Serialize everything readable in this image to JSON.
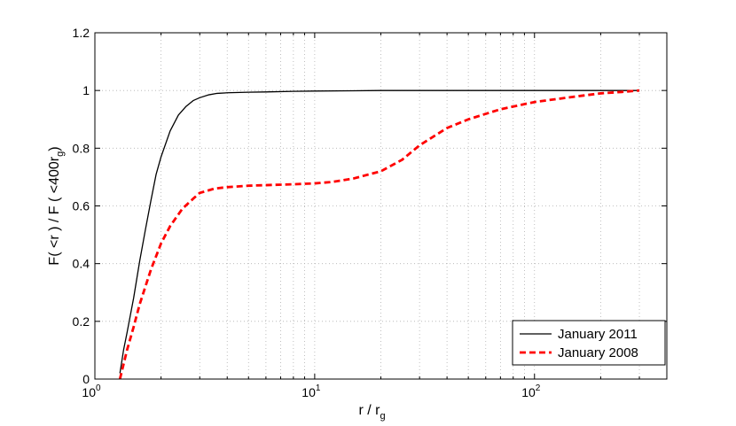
{
  "chart_data": {
    "type": "line",
    "title": "",
    "xlabel": {
      "main": "r / r",
      "sub": "g"
    },
    "ylabel": {
      "main": "F( <r ) / F ( <400r",
      "sub": "g",
      "tail": ")"
    },
    "xscale": "log",
    "xlim": [
      1,
      400
    ],
    "ylim": [
      0,
      1.2
    ],
    "grid": true,
    "legend_position": "bottom-right",
    "xticks": [
      {
        "base": "10",
        "exp": "0",
        "value": 1
      },
      {
        "base": "10",
        "exp": "1",
        "value": 10
      },
      {
        "base": "10",
        "exp": "2",
        "value": 100
      }
    ],
    "yticks": [
      {
        "label": "0",
        "value": 0
      },
      {
        "label": "0.2",
        "value": 0.2
      },
      {
        "label": "0.4",
        "value": 0.4
      },
      {
        "label": "0.6",
        "value": 0.6
      },
      {
        "label": "0.8",
        "value": 0.8
      },
      {
        "label": "1",
        "value": 1.0
      },
      {
        "label": "1.2",
        "value": 1.2
      }
    ],
    "series": [
      {
        "name": "January 2011",
        "color": "#000000",
        "style": "solid",
        "x": [
          1.3,
          1.35,
          1.4,
          1.5,
          1.6,
          1.7,
          1.8,
          1.9,
          2.0,
          2.2,
          2.4,
          2.6,
          2.8,
          3.0,
          3.3,
          3.6,
          4.0,
          5,
          6,
          8,
          10,
          15,
          20,
          30,
          50,
          100,
          200,
          300
        ],
        "y": [
          0.02,
          0.1,
          0.16,
          0.28,
          0.41,
          0.52,
          0.62,
          0.71,
          0.77,
          0.86,
          0.915,
          0.945,
          0.965,
          0.975,
          0.985,
          0.99,
          0.992,
          0.994,
          0.995,
          0.997,
          0.998,
          0.999,
          1.0,
          1.0,
          1.0,
          1.0,
          1.0,
          1.0
        ]
      },
      {
        "name": "January 2008",
        "color": "#ff0000",
        "style": "dashed",
        "x": [
          1.3,
          1.4,
          1.5,
          1.6,
          1.8,
          2.0,
          2.2,
          2.5,
          2.8,
          3.0,
          3.5,
          4.0,
          5,
          6,
          8,
          10,
          12,
          15,
          20,
          25,
          30,
          40,
          50,
          70,
          100,
          150,
          200,
          250,
          300
        ],
        "y": [
          0.0,
          0.1,
          0.18,
          0.26,
          0.38,
          0.47,
          0.53,
          0.59,
          0.625,
          0.645,
          0.66,
          0.665,
          0.67,
          0.672,
          0.675,
          0.678,
          0.683,
          0.695,
          0.72,
          0.76,
          0.81,
          0.87,
          0.9,
          0.935,
          0.96,
          0.978,
          0.99,
          0.995,
          1.0
        ]
      }
    ]
  }
}
